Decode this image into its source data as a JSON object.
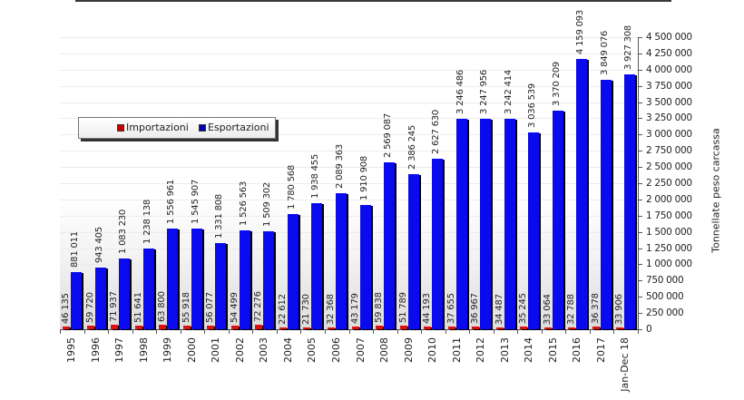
{
  "chart_data": {
    "type": "bar",
    "title": "",
    "xlabel": "",
    "ylabel": "Tonnellate peso carcassa",
    "ylim": [
      0,
      4500000
    ],
    "y_ticks": [
      "0",
      "250 000",
      "500 000",
      "750 000",
      "1 000 000",
      "1 250 000",
      "1 500 000",
      "1 750 000",
      "2 000 000",
      "2 250 000",
      "2 500 000",
      "2 750 000",
      "3 000 000",
      "3 250 000",
      "3 500 000",
      "3 750 000",
      "4 000 000",
      "4 250 000",
      "4 500 000"
    ],
    "y_axis_position": "right",
    "grid": true,
    "legend_position": "upper-left",
    "categories": [
      "1995",
      "1996",
      "1997",
      "1998",
      "1999",
      "2000",
      "2001",
      "2002",
      "2003",
      "2004",
      "2005",
      "2006",
      "2007",
      "2008",
      "2009",
      "2010",
      "2011",
      "2012",
      "2013",
      "2014",
      "2015",
      "2016",
      "2017",
      "Jan-Dec 18"
    ],
    "series": [
      {
        "name": "Importazioni",
        "color": "#e01010",
        "values": [
          46135,
          59720,
          71937,
          51641,
          63800,
          55918,
          56077,
          54499,
          72276,
          22612,
          21730,
          32368,
          43179,
          59838,
          51789,
          44193,
          37655,
          36967,
          34487,
          35245,
          33064,
          32788,
          36378,
          33906
        ],
        "labels": [
          "46 135",
          "59 720",
          "71 937",
          "51 641",
          "63 800",
          "55 918",
          "56 077",
          "54 499",
          "72 276",
          "22 612",
          "21 730",
          "32 368",
          "43 179",
          "59 838",
          "51 789",
          "44 193",
          "37 655",
          "36 967",
          "34 487",
          "35 245",
          "33 064",
          "32 788",
          "36 378",
          "33 906"
        ]
      },
      {
        "name": "Esportazioni",
        "color": "#0a0aee",
        "values": [
          881011,
          943405,
          1083230,
          1238138,
          1556961,
          1545907,
          1331808,
          1526563,
          1509302,
          1780568,
          1938455,
          2089363,
          1910908,
          2569087,
          2386245,
          2627630,
          3246486,
          3247956,
          3242414,
          3036539,
          3370209,
          4159093,
          3849076,
          3927308
        ],
        "labels": [
          "881 011",
          "943 405",
          "1 083 230",
          "1 238 138",
          "1 556 961",
          "1 545 907",
          "1 331 808",
          "1 526 563",
          "1 509 302",
          "1 780 568",
          "1 938 455",
          "2 089 363",
          "1 910 908",
          "2 569 087",
          "2 386 245",
          "2 627 630",
          "3 246 486",
          "3 247 956",
          "3 242 414",
          "3 036 539",
          "3 370 209",
          "4 159 093",
          "3 849 076",
          "3 927 308"
        ]
      }
    ]
  },
  "legend": {
    "items": [
      {
        "label": "Importazioni",
        "color": "#e01010"
      },
      {
        "label": "Esportazioni",
        "color": "#0a0aee"
      }
    ]
  }
}
